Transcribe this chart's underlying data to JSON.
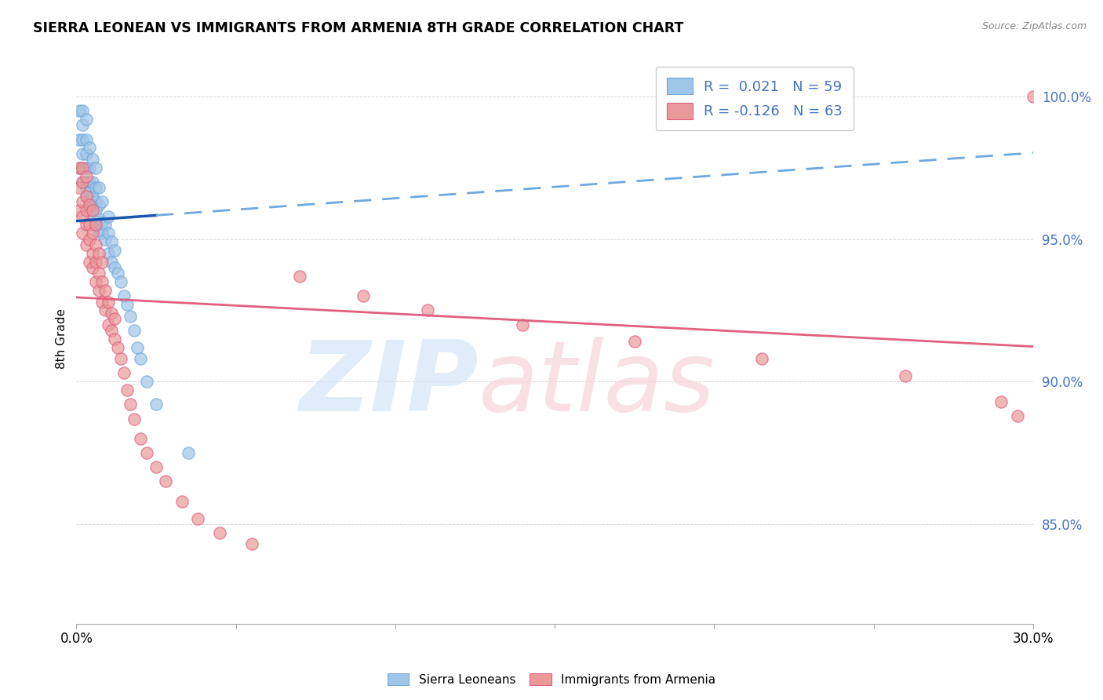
{
  "title": "SIERRA LEONEAN VS IMMIGRANTS FROM ARMENIA 8TH GRADE CORRELATION CHART",
  "source": "Source: ZipAtlas.com",
  "ylabel": "8th Grade",
  "y_ticks": [
    0.85,
    0.9,
    0.95,
    1.0
  ],
  "y_tick_labels": [
    "85.0%",
    "90.0%",
    "95.0%",
    "100.0%"
  ],
  "xlim": [
    0.0,
    0.3
  ],
  "ylim": [
    0.815,
    1.015
  ],
  "blue_color": "#9fc5e8",
  "pink_color": "#ea9999",
  "trendline_blue_solid_color": "#1a56b0",
  "trendline_blue_dash_color": "#6fa8dc",
  "trendline_pink_color": "#e06080",
  "watermark_zip_color": "#cce0f5",
  "watermark_atlas_color": "#f5ccd4",
  "sierra_x": [
    0.001,
    0.001,
    0.001,
    0.002,
    0.002,
    0.002,
    0.002,
    0.002,
    0.002,
    0.003,
    0.003,
    0.003,
    0.003,
    0.003,
    0.003,
    0.003,
    0.004,
    0.004,
    0.004,
    0.004,
    0.004,
    0.004,
    0.005,
    0.005,
    0.005,
    0.005,
    0.005,
    0.006,
    0.006,
    0.006,
    0.006,
    0.006,
    0.007,
    0.007,
    0.007,
    0.007,
    0.008,
    0.008,
    0.008,
    0.009,
    0.009,
    0.01,
    0.01,
    0.01,
    0.011,
    0.011,
    0.012,
    0.012,
    0.013,
    0.014,
    0.015,
    0.016,
    0.017,
    0.018,
    0.019,
    0.02,
    0.022,
    0.025,
    0.035
  ],
  "sierra_y": [
    0.975,
    0.985,
    0.995,
    0.97,
    0.975,
    0.98,
    0.985,
    0.99,
    0.995,
    0.965,
    0.968,
    0.97,
    0.975,
    0.98,
    0.985,
    0.992,
    0.96,
    0.963,
    0.967,
    0.97,
    0.975,
    0.982,
    0.958,
    0.962,
    0.965,
    0.97,
    0.978,
    0.955,
    0.96,
    0.963,
    0.968,
    0.975,
    0.953,
    0.957,
    0.962,
    0.968,
    0.952,
    0.956,
    0.963,
    0.95,
    0.955,
    0.945,
    0.952,
    0.958,
    0.942,
    0.949,
    0.94,
    0.946,
    0.938,
    0.935,
    0.93,
    0.927,
    0.923,
    0.918,
    0.912,
    0.908,
    0.9,
    0.892,
    0.875
  ],
  "armenia_x": [
    0.001,
    0.001,
    0.001,
    0.002,
    0.002,
    0.002,
    0.002,
    0.002,
    0.003,
    0.003,
    0.003,
    0.003,
    0.003,
    0.004,
    0.004,
    0.004,
    0.004,
    0.005,
    0.005,
    0.005,
    0.005,
    0.006,
    0.006,
    0.006,
    0.006,
    0.007,
    0.007,
    0.007,
    0.008,
    0.008,
    0.008,
    0.009,
    0.009,
    0.01,
    0.01,
    0.011,
    0.011,
    0.012,
    0.012,
    0.013,
    0.014,
    0.015,
    0.016,
    0.017,
    0.018,
    0.02,
    0.022,
    0.025,
    0.028,
    0.033,
    0.038,
    0.045,
    0.055,
    0.07,
    0.09,
    0.11,
    0.14,
    0.175,
    0.215,
    0.26,
    0.29,
    0.295,
    0.3
  ],
  "armenia_y": [
    0.96,
    0.968,
    0.975,
    0.952,
    0.958,
    0.963,
    0.97,
    0.975,
    0.948,
    0.955,
    0.96,
    0.965,
    0.972,
    0.942,
    0.95,
    0.955,
    0.962,
    0.94,
    0.945,
    0.952,
    0.96,
    0.935,
    0.942,
    0.948,
    0.955,
    0.932,
    0.938,
    0.945,
    0.928,
    0.935,
    0.942,
    0.925,
    0.932,
    0.92,
    0.928,
    0.918,
    0.924,
    0.915,
    0.922,
    0.912,
    0.908,
    0.903,
    0.897,
    0.892,
    0.887,
    0.88,
    0.875,
    0.87,
    0.865,
    0.858,
    0.852,
    0.847,
    0.843,
    0.937,
    0.93,
    0.925,
    0.92,
    0.914,
    0.908,
    0.902,
    0.893,
    0.888,
    1.0
  ]
}
